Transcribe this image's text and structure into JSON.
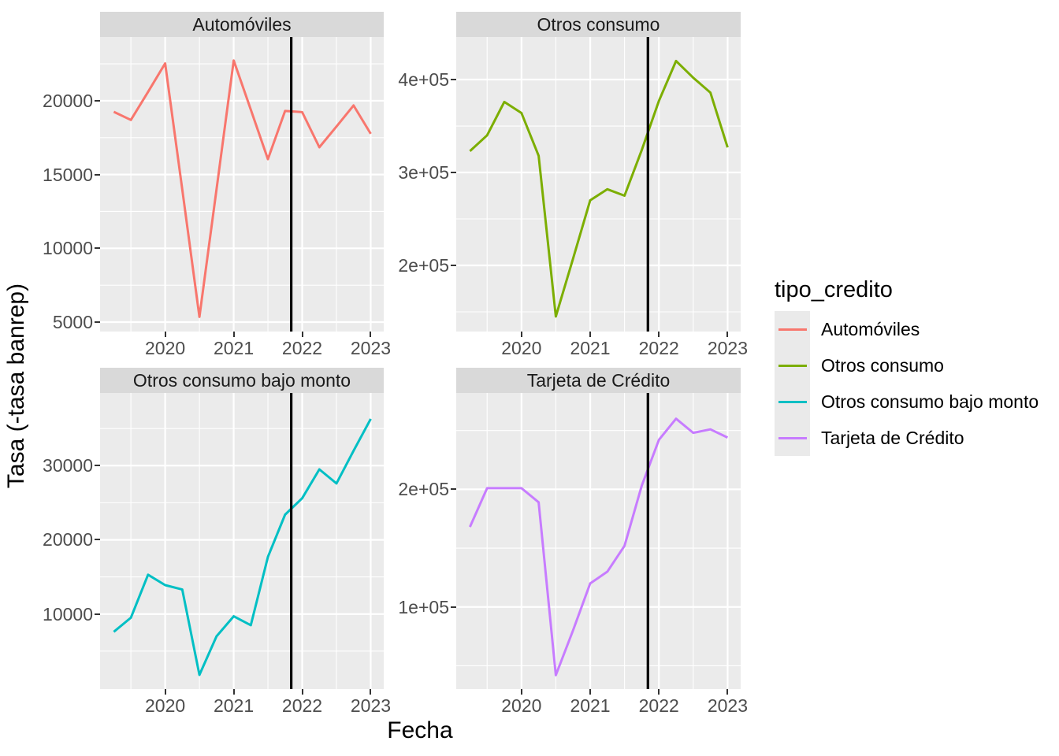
{
  "figure": {
    "xlabel": "Fecha",
    "ylabel": "Tasa (-tasa banrep)",
    "vline_x": 2021.84,
    "colors": {
      "background": "#FFFFFF",
      "panel_bg": "#EBEBEB",
      "strip_bg": "#D9D9D9",
      "grid": "#FFFFFF",
      "axis_text": "#4D4D4D",
      "tick_mark": "#333333",
      "vline": "#000000"
    }
  },
  "legend": {
    "title": "tipo_credito",
    "key_bg": "#EAEAEA",
    "items": [
      {
        "label": "Automóviles",
        "color": "#F8766D"
      },
      {
        "label": "Otros consumo",
        "color": "#7CAE00"
      },
      {
        "label": "Otros consumo bajo monto",
        "color": "#00BFC4"
      },
      {
        "label": "Tarjeta de Crédito",
        "color": "#C77CFF"
      }
    ]
  },
  "chart_data": [
    {
      "type": "line",
      "title": "Automóviles",
      "color": "#F8766D",
      "x": [
        2019.25,
        2019.5,
        2019.75,
        2020,
        2020.25,
        2020.5,
        2020.75,
        2021,
        2021.25,
        2021.5,
        2021.75,
        2022,
        2022.25,
        2022.5,
        2022.75,
        2023
      ],
      "values": [
        19250,
        18700,
        20600,
        22530,
        14000,
        5350,
        14000,
        22730,
        19400,
        16040,
        19310,
        19230,
        16850,
        18250,
        19680,
        17760
      ],
      "xlim": [
        2019.05,
        2023.19
      ],
      "ylim": [
        4360,
        24320
      ],
      "xticks": [
        2020,
        2021,
        2022,
        2023
      ],
      "xtick_labels": [
        "2020",
        "2021",
        "2022",
        "2023"
      ],
      "xticks_minor": [
        2019.5,
        2020.5,
        2021.5,
        2022.5
      ],
      "yticks": [
        5000,
        10000,
        15000,
        20000
      ],
      "ytick_labels": [
        "5000",
        "10000",
        "15000",
        "20000"
      ],
      "yticks_minor": [
        7500,
        12500,
        17500,
        22500
      ],
      "vline_x": 2021.84
    },
    {
      "type": "line",
      "title": "Otros consumo",
      "color": "#7CAE00",
      "x": [
        2019.25,
        2019.5,
        2019.75,
        2020,
        2020.25,
        2020.5,
        2020.75,
        2021,
        2021.25,
        2021.5,
        2021.75,
        2022,
        2022.25,
        2022.5,
        2022.75,
        2023
      ],
      "values": [
        323000,
        340000,
        376000,
        364000,
        318000,
        145000,
        207000,
        270000,
        282000,
        275000,
        324000,
        377000,
        420000,
        402000,
        386000,
        327000
      ],
      "xlim": [
        2019.05,
        2023.19
      ],
      "ylim": [
        128800,
        445800
      ],
      "xticks": [
        2020,
        2021,
        2022,
        2023
      ],
      "xtick_labels": [
        "2020",
        "2021",
        "2022",
        "2023"
      ],
      "xticks_minor": [
        2019.5,
        2020.5,
        2021.5,
        2022.5
      ],
      "yticks": [
        200000,
        300000,
        400000
      ],
      "ytick_labels": [
        "2e+05",
        "3e+05",
        "4e+05"
      ],
      "yticks_minor": [
        150000,
        250000,
        350000
      ],
      "vline_x": 2021.84
    },
    {
      "type": "line",
      "title": "Otros consumo bajo monto",
      "color": "#00BFC4",
      "x": [
        2019.25,
        2019.5,
        2019.75,
        2020,
        2020.25,
        2020.5,
        2020.75,
        2021,
        2021.25,
        2021.5,
        2021.75,
        2022,
        2022.25,
        2022.5,
        2022.75,
        2023
      ],
      "values": [
        7600,
        9500,
        15300,
        13900,
        13300,
        1800,
        7000,
        9700,
        8500,
        17700,
        23400,
        25600,
        29500,
        27600,
        32000,
        36300
      ],
      "xlim": [
        2019.05,
        2023.19
      ],
      "ylim": [
        -110,
        39790
      ],
      "xticks": [
        2020,
        2021,
        2022,
        2023
      ],
      "xtick_labels": [
        "2020",
        "2021",
        "2022",
        "2023"
      ],
      "xticks_minor": [
        2019.5,
        2020.5,
        2021.5,
        2022.5
      ],
      "yticks": [
        10000,
        20000,
        30000
      ],
      "ytick_labels": [
        "10000",
        "20000",
        "30000"
      ],
      "yticks_minor": [
        5000,
        15000,
        25000,
        35000
      ],
      "vline_x": 2021.84
    },
    {
      "type": "line",
      "title": "Tarjeta de Crédito",
      "color": "#C77CFF",
      "x": [
        2019.25,
        2019.5,
        2019.75,
        2020,
        2020.25,
        2020.5,
        2020.75,
        2021,
        2021.25,
        2021.5,
        2021.75,
        2022,
        2022.25,
        2022.5,
        2022.75,
        2023
      ],
      "values": [
        168000,
        201000,
        201000,
        201000,
        189000,
        42000,
        80000,
        120000,
        130000,
        152000,
        203000,
        242000,
        260000,
        248000,
        251000,
        244000
      ],
      "xlim": [
        2019.05,
        2023.19
      ],
      "ylim": [
        30200,
        281900
      ],
      "xticks": [
        2020,
        2021,
        2022,
        2023
      ],
      "xtick_labels": [
        "2020",
        "2021",
        "2022",
        "2023"
      ],
      "xticks_minor": [
        2019.5,
        2020.5,
        2021.5,
        2022.5
      ],
      "yticks": [
        100000,
        200000
      ],
      "ytick_labels": [
        "1e+05",
        "2e+05"
      ],
      "yticks_minor": [
        50000,
        150000,
        250000
      ],
      "vline_x": 2021.84
    }
  ]
}
